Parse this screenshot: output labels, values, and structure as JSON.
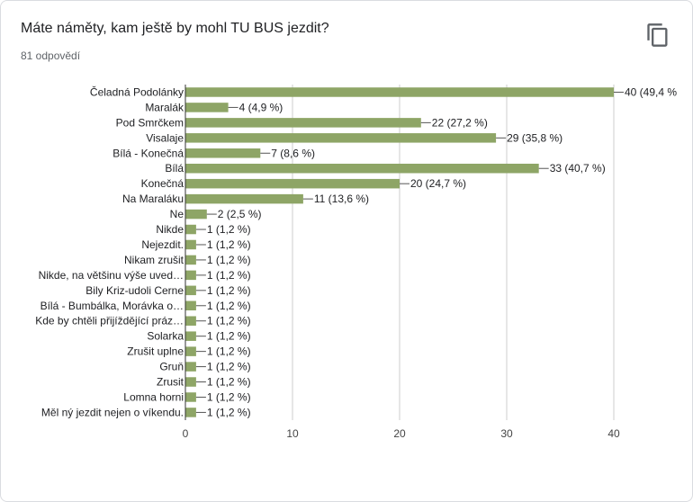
{
  "card": {
    "title": "Máte náměty, kam ještě by mohl TU BUS jezdit?",
    "response_count": "81 odpovědí",
    "copy_icon": "copy-icon"
  },
  "chart_data": {
    "type": "bar",
    "orientation": "horizontal",
    "total": 81,
    "categories": [
      "Čeladná Podolánky",
      "Maralák",
      "Pod Smrčkem",
      "Visalaje",
      "Bílá - Konečná",
      "Bílá",
      "Konečná",
      "Na Maraláku",
      "Ne",
      "Nikde",
      "Nejezdit.",
      "Nikam zrušit",
      "Nikde, na většinu výše uved…",
      "Bily Kriz-udoli Cerne",
      "Bílá - Bumbálka, Morávka o…",
      "Kde by chtěli přijíždějící práz…",
      "Solarka",
      "Zrušit uplne",
      "Gruň",
      "Zrusit",
      "Lomna horni",
      "Měl ný jezdit nejen o víkendu."
    ],
    "values": [
      40,
      4,
      22,
      29,
      7,
      33,
      20,
      11,
      2,
      1,
      1,
      1,
      1,
      1,
      1,
      1,
      1,
      1,
      1,
      1,
      1,
      1
    ],
    "data_labels": [
      "40 (49,4 %",
      "4 (4,9 %)",
      "22 (27,2 %)",
      "29 (35,8 %)",
      "7 (8,6 %)",
      "33 (40,7 %)",
      "20 (24,7 %)",
      "11 (13,6 %)",
      "2 (2,5 %)",
      "1 (1,2 %)",
      "1 (1,2 %)",
      "1 (1,2 %)",
      "1 (1,2 %)",
      "1 (1,2 %)",
      "1 (1,2 %)",
      "1 (1,2 %)",
      "1 (1,2 %)",
      "1 (1,2 %)",
      "1 (1,2 %)",
      "1 (1,2 %)",
      "1 (1,2 %)",
      "1 (1,2 %)"
    ],
    "xlim": [
      0,
      40
    ],
    "xticks": [
      0,
      10,
      20,
      30,
      40
    ],
    "grid": true,
    "bar_color": "#8ea566",
    "grid_color": "#cccccc",
    "axis_color": "#333333"
  }
}
